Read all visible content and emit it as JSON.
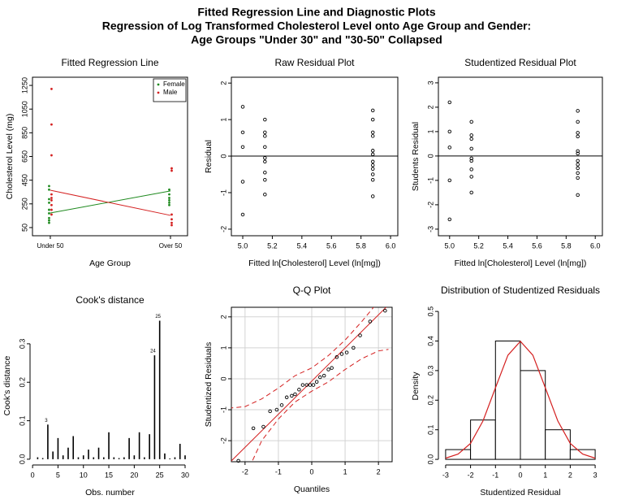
{
  "title": [
    "Fitted Regression Line and Diagnostic Plots",
    "Regression of Log Transformed Cholesterol Level onto Age Group and Gender:",
    "Age Groups \"Under 30\" and \"30-50\" Collapsed"
  ],
  "chart_data": [
    {
      "type": "line",
      "title": "Fitted Regression Line",
      "x_label": "Age Group",
      "y_label": "Cholesterol Level (mg)",
      "categories": [
        "Under 50",
        "Over 50"
      ],
      "ylim": [
        -19,
        1319
      ],
      "yticks": [
        50,
        250,
        450,
        650,
        850,
        1050,
        1250
      ],
      "legend": "top-right",
      "series": [
        {
          "name": "Female",
          "color": "#1f8a1f",
          "values": [
            173,
            359
          ],
          "points": [
            [
              400,
              370,
              290,
              260,
              200,
              170,
              130,
              110,
              90
            ],
            [
              370,
              330,
              300,
              280,
              260,
              240
            ]
          ]
        },
        {
          "name": "Male",
          "color": "#d42020",
          "values": [
            365,
            153
          ],
          "points": [
            [
              1220,
              920,
              660,
              330,
              300,
              280,
              240,
              200,
              160
            ],
            [
              550,
              530,
              160,
              120,
              90,
              70
            ]
          ]
        }
      ]
    },
    {
      "type": "scatter",
      "title": "Raw Residual Plot",
      "x_label": "Fitted ln[Cholesterol] Level (ln[mg])",
      "y_label": "Residual",
      "xlim": [
        4.923,
        6.049
      ],
      "xticks": [
        {
          "value": 5,
          "label": "5.0"
        },
        5.2,
        5.4,
        5.6,
        5.8,
        {
          "value": 6,
          "label": "6.0"
        }
      ],
      "ylim": [
        -2.18,
        2.16
      ],
      "yticks": [
        -2,
        -1,
        0,
        1,
        2
      ],
      "reference_line": 0,
      "x": [
        5.0,
        5.0,
        5.0,
        5.0,
        5.0,
        5.15,
        5.15,
        5.15,
        5.15,
        5.15,
        5.15,
        5.15,
        5.15,
        5.15,
        5.88,
        5.88,
        5.88,
        5.88,
        5.88,
        5.88,
        5.88,
        5.88,
        5.88,
        5.88,
        5.88,
        5.88
      ],
      "values": [
        1.35,
        0.65,
        0.25,
        -0.7,
        -1.6,
        1.0,
        0.65,
        0.55,
        0.25,
        -0.05,
        -0.15,
        -0.45,
        -0.65,
        -1.05,
        1.25,
        1.0,
        0.65,
        0.55,
        0.15,
        0.05,
        -0.15,
        -0.25,
        -0.35,
        -0.5,
        -0.65,
        -1.1
      ]
    },
    {
      "type": "scatter",
      "title": "Studentized Residual Plot",
      "x_label": "Fitted ln[Cholesterol] Level (ln[mg])",
      "y_label": "Students Residual",
      "xlim": [
        4.923,
        6.049
      ],
      "xticks": [
        {
          "value": 5,
          "label": "5.0"
        },
        5.2,
        5.4,
        5.6,
        5.8,
        {
          "value": 6,
          "label": "6.0"
        }
      ],
      "ylim": [
        -3.27,
        3.23
      ],
      "yticks": [
        -3,
        -2,
        -1,
        0,
        1,
        2,
        3
      ],
      "reference_line": 0,
      "x": [
        5.0,
        5.0,
        5.0,
        5.0,
        5.0,
        5.15,
        5.15,
        5.15,
        5.15,
        5.15,
        5.15,
        5.15,
        5.15,
        5.15,
        5.88,
        5.88,
        5.88,
        5.88,
        5.88,
        5.88,
        5.88,
        5.88,
        5.88,
        5.88,
        5.88,
        5.88
      ],
      "values": [
        2.2,
        1.0,
        0.35,
        -1.0,
        -2.6,
        1.4,
        0.85,
        0.7,
        0.3,
        -0.1,
        -0.2,
        -0.55,
        -0.85,
        -1.5,
        1.85,
        1.4,
        0.95,
        0.8,
        0.2,
        0.1,
        -0.2,
        -0.35,
        -0.5,
        -0.7,
        -0.9,
        -1.6
      ]
    },
    {
      "type": "bar",
      "title": "Cook's distance",
      "x_label": "Obs. number",
      "y_label": "Cook's distance",
      "xlim": [
        -0.5,
        30.96
      ],
      "xticks": [
        0,
        5,
        10,
        15,
        20,
        25,
        30
      ],
      "ylim": [
        -0.015,
        0.397
      ],
      "yticks": [
        {
          "value": 0,
          "label": "0.0"
        },
        0.1,
        0.2,
        0.3
      ],
      "x": [
        1,
        2,
        3,
        4,
        5,
        6,
        7,
        8,
        9,
        10,
        11,
        12,
        13,
        14,
        15,
        16,
        17,
        18,
        19,
        20,
        21,
        22,
        23,
        24,
        25,
        26,
        27,
        28,
        29,
        30
      ],
      "values": [
        0.005,
        0.003,
        0.09,
        0.02,
        0.055,
        0.01,
        0.03,
        0.06,
        0.005,
        0.01,
        0.025,
        0.005,
        0.03,
        0.005,
        0.07,
        0.005,
        0.003,
        0.005,
        0.055,
        0.01,
        0.07,
        0.005,
        0.065,
        0.27,
        0.36,
        0.015,
        0.002,
        0.005,
        0.04,
        0.01
      ],
      "point_labels": [
        {
          "x": 3,
          "label": "3"
        },
        {
          "x": 24,
          "label": "24"
        },
        {
          "x": 25,
          "label": "25"
        }
      ]
    },
    {
      "type": "qq",
      "title": "Q-Q Plot",
      "x_label": "Quantiles",
      "y_label": "Studentized Residuals",
      "grid": true,
      "xlim": [
        -2.41,
        2.41
      ],
      "xticks": [
        -2,
        -1,
        0,
        1,
        2
      ],
      "ylim": [
        -2.68,
        2.31
      ],
      "yticks": [
        -2,
        -1,
        0,
        1,
        2
      ],
      "x": [
        -2.2,
        -1.75,
        -1.45,
        -1.25,
        -1.05,
        -0.9,
        -0.75,
        -0.6,
        -0.5,
        -0.38,
        -0.27,
        -0.15,
        -0.05,
        0.05,
        0.15,
        0.25,
        0.37,
        0.5,
        0.6,
        0.75,
        0.9,
        1.05,
        1.25,
        1.45,
        1.75,
        2.2
      ],
      "values": [
        -2.65,
        -1.6,
        -1.55,
        -1.05,
        -1.0,
        -0.85,
        -0.6,
        -0.55,
        -0.5,
        -0.35,
        -0.2,
        -0.2,
        -0.2,
        -0.2,
        -0.1,
        0.05,
        0.1,
        0.3,
        0.35,
        0.7,
        0.8,
        0.85,
        1.0,
        1.4,
        1.85,
        2.2
      ],
      "fit_line": {
        "x": [
          -2.5,
          2.5
        ],
        "y": [
          -2.75,
          2.6
        ]
      },
      "band_upper": {
        "x": [
          -2.5,
          -2.0,
          -1.5,
          -1.0,
          -0.5,
          0,
          0.5,
          1.0,
          1.5,
          2.0,
          2.5
        ],
        "y": [
          -0.95,
          -0.9,
          -0.65,
          -0.3,
          0.1,
          0.35,
          0.75,
          1.25,
          1.85,
          2.5,
          3.1
        ]
      },
      "band_lower": {
        "x": [
          -2.0,
          -1.8,
          -1.5,
          -1.0,
          -0.5,
          0,
          0.5,
          1.0,
          1.5,
          2.0,
          2.3
        ],
        "y": [
          -3.1,
          -2.7,
          -2.0,
          -1.3,
          -0.75,
          -0.4,
          -0.1,
          0.3,
          0.65,
          0.9,
          0.95
        ]
      },
      "color": "#d42020"
    },
    {
      "type": "histogram",
      "title": "Distribution of Studentized Residuals",
      "x_label": "Studentized Residual",
      "y_label": "Density",
      "xlim": [
        -3.29,
        3.29
      ],
      "xticks": [
        -3,
        -2,
        -1,
        0,
        1,
        2,
        3
      ],
      "ylim": [
        -0.019,
        0.514
      ],
      "yticks": [
        {
          "value": 0,
          "label": "0.0"
        },
        0.1,
        0.2,
        0.3,
        0.4,
        0.5
      ],
      "bins": [
        -3,
        -2,
        -1,
        0,
        1,
        2,
        3
      ],
      "values": [
        0.033,
        0.133,
        0.4,
        0.3,
        0.1,
        0.033
      ],
      "density_curve": {
        "x": [
          -3,
          -2.5,
          -2,
          -1.5,
          -1,
          -0.5,
          0,
          0.5,
          1,
          1.5,
          2,
          2.5,
          3
        ],
        "y": [
          0.004,
          0.018,
          0.054,
          0.13,
          0.242,
          0.352,
          0.399,
          0.352,
          0.242,
          0.13,
          0.054,
          0.018,
          0.004
        ]
      },
      "color": "#d42020"
    }
  ]
}
